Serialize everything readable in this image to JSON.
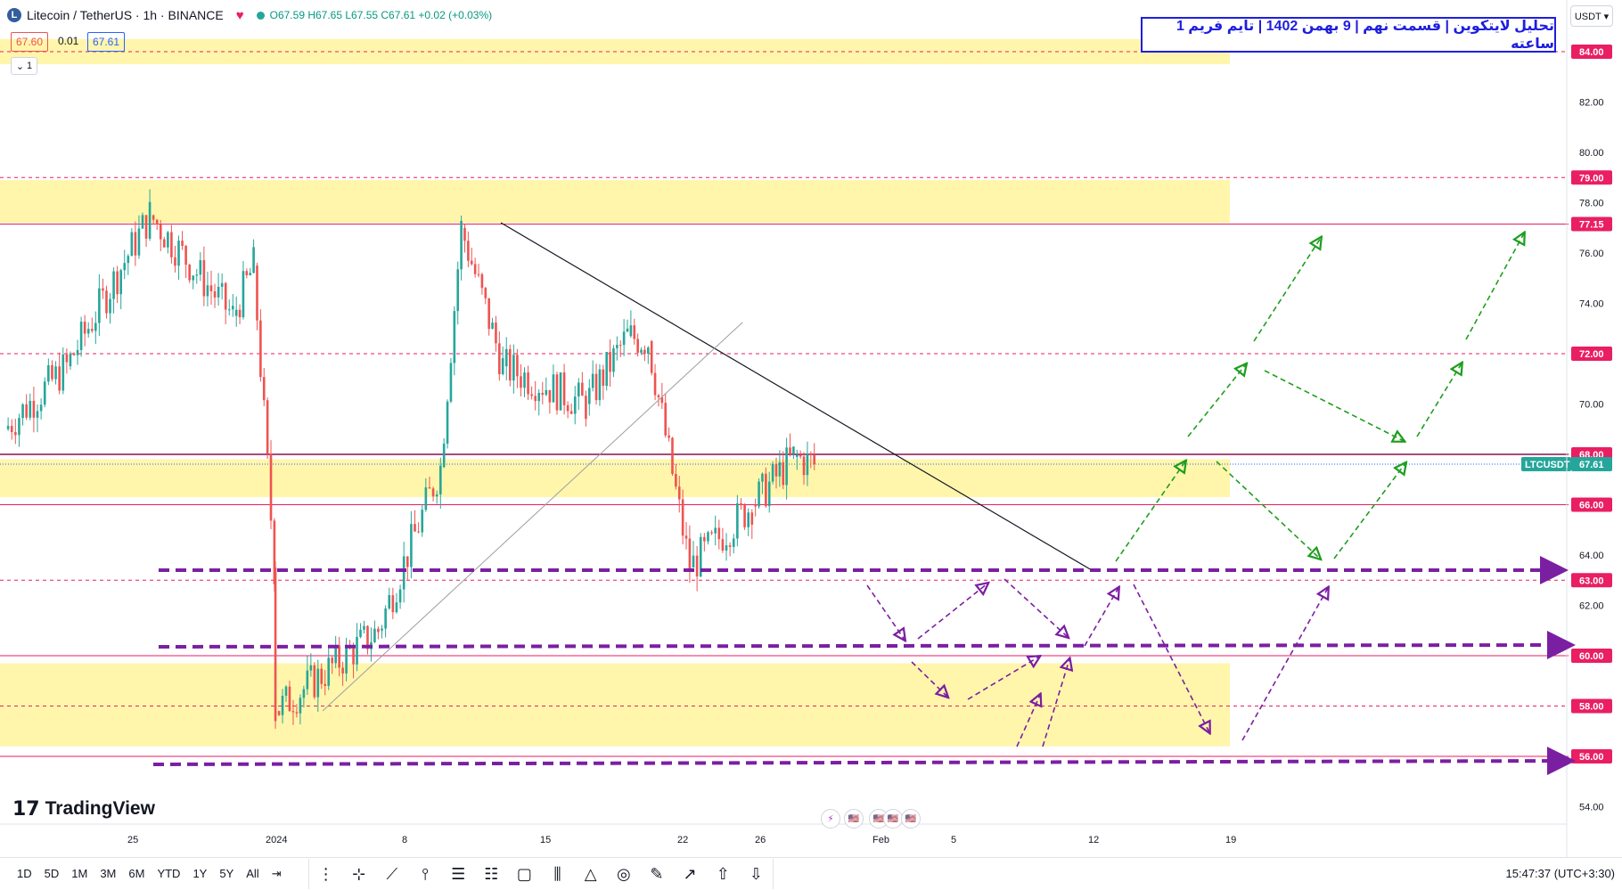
{
  "header": {
    "symbol": "Litecoin / TetherUS · 1h · BINANCE",
    "coin_icon": "L",
    "ohlc": "O67.59 H67.65 L67.55 C67.61 +0.02 (+0.03%)",
    "bid": "67.60",
    "spread": "0.01",
    "ask": "67.61",
    "legend_count": "1"
  },
  "title_text": "تحلیل لایتکوین | قسمت نهم | 9 بهمن 1402 | تایم فریم 1 ساعته",
  "currency": "USDT ▾",
  "branding": "TradingView",
  "bottom": {
    "ranges": [
      "1D",
      "5D",
      "1M",
      "3M",
      "6M",
      "YTD",
      "1Y",
      "5Y",
      "All"
    ],
    "clock": "15:47:37 (UTC+3:30)"
  },
  "colors": {
    "zone": "#fff59d",
    "level": "#e91e63",
    "up": "#26a69a",
    "down": "#ef5350",
    "purple": "#7b1fa2",
    "green": "#1e9e1e",
    "price_tag": "#26a69a"
  },
  "chart_data": {
    "type": "line",
    "symbol_tag": "LTCUSDT",
    "last_price": "67.61",
    "y_ticks": [
      "54.00",
      "56.00",
      "58.00",
      "60.00",
      "62.00",
      "64.00",
      "66.00",
      "68.00",
      "70.00",
      "72.00",
      "74.00",
      "76.00",
      "78.00",
      "80.00",
      "82.00",
      "84.00"
    ],
    "highlighted_levels": [
      "84.00",
      "79.00",
      "77.15",
      "72.00",
      "68.00",
      "66.00",
      "63.00",
      "60.00",
      "58.00",
      "56.00"
    ],
    "x_ticks": [
      "25",
      "2024",
      "8",
      "15",
      "22",
      "26",
      "Feb",
      "5",
      "12",
      "19"
    ],
    "zones": [
      [
        83.5,
        84.5
      ],
      [
        77.2,
        78.9
      ],
      [
        66.3,
        67.8
      ],
      [
        56.4,
        59.7
      ]
    ],
    "price_path": [
      {
        "t": "Dec 21",
        "price": 69.0
      },
      {
        "t": "Dec 24",
        "price": 71.5
      },
      {
        "t": "Dec 28",
        "price": 77.5
      },
      {
        "t": "Jan 1",
        "price": 73.5
      },
      {
        "t": "Jan 2",
        "price": 75.5
      },
      {
        "t": "Jan 3",
        "price": 63.5
      },
      {
        "t": "Jan 3",
        "price": 57.8
      },
      {
        "t": "Jan 8",
        "price": 61.0
      },
      {
        "t": "Jan 11",
        "price": 67.5
      },
      {
        "t": "Jan 12",
        "price": 77.0
      },
      {
        "t": "Jan 14",
        "price": 71.5
      },
      {
        "t": "Jan 18",
        "price": 70.0
      },
      {
        "t": "Jan 20",
        "price": 72.7
      },
      {
        "t": "Jan 21",
        "price": 72.5
      },
      {
        "t": "Jan 23",
        "price": 63.5
      },
      {
        "t": "Jan 26",
        "price": 66.0
      },
      {
        "t": "Jan 28",
        "price": 67.9
      },
      {
        "t": "Jan 29",
        "price": 67.61
      }
    ]
  }
}
